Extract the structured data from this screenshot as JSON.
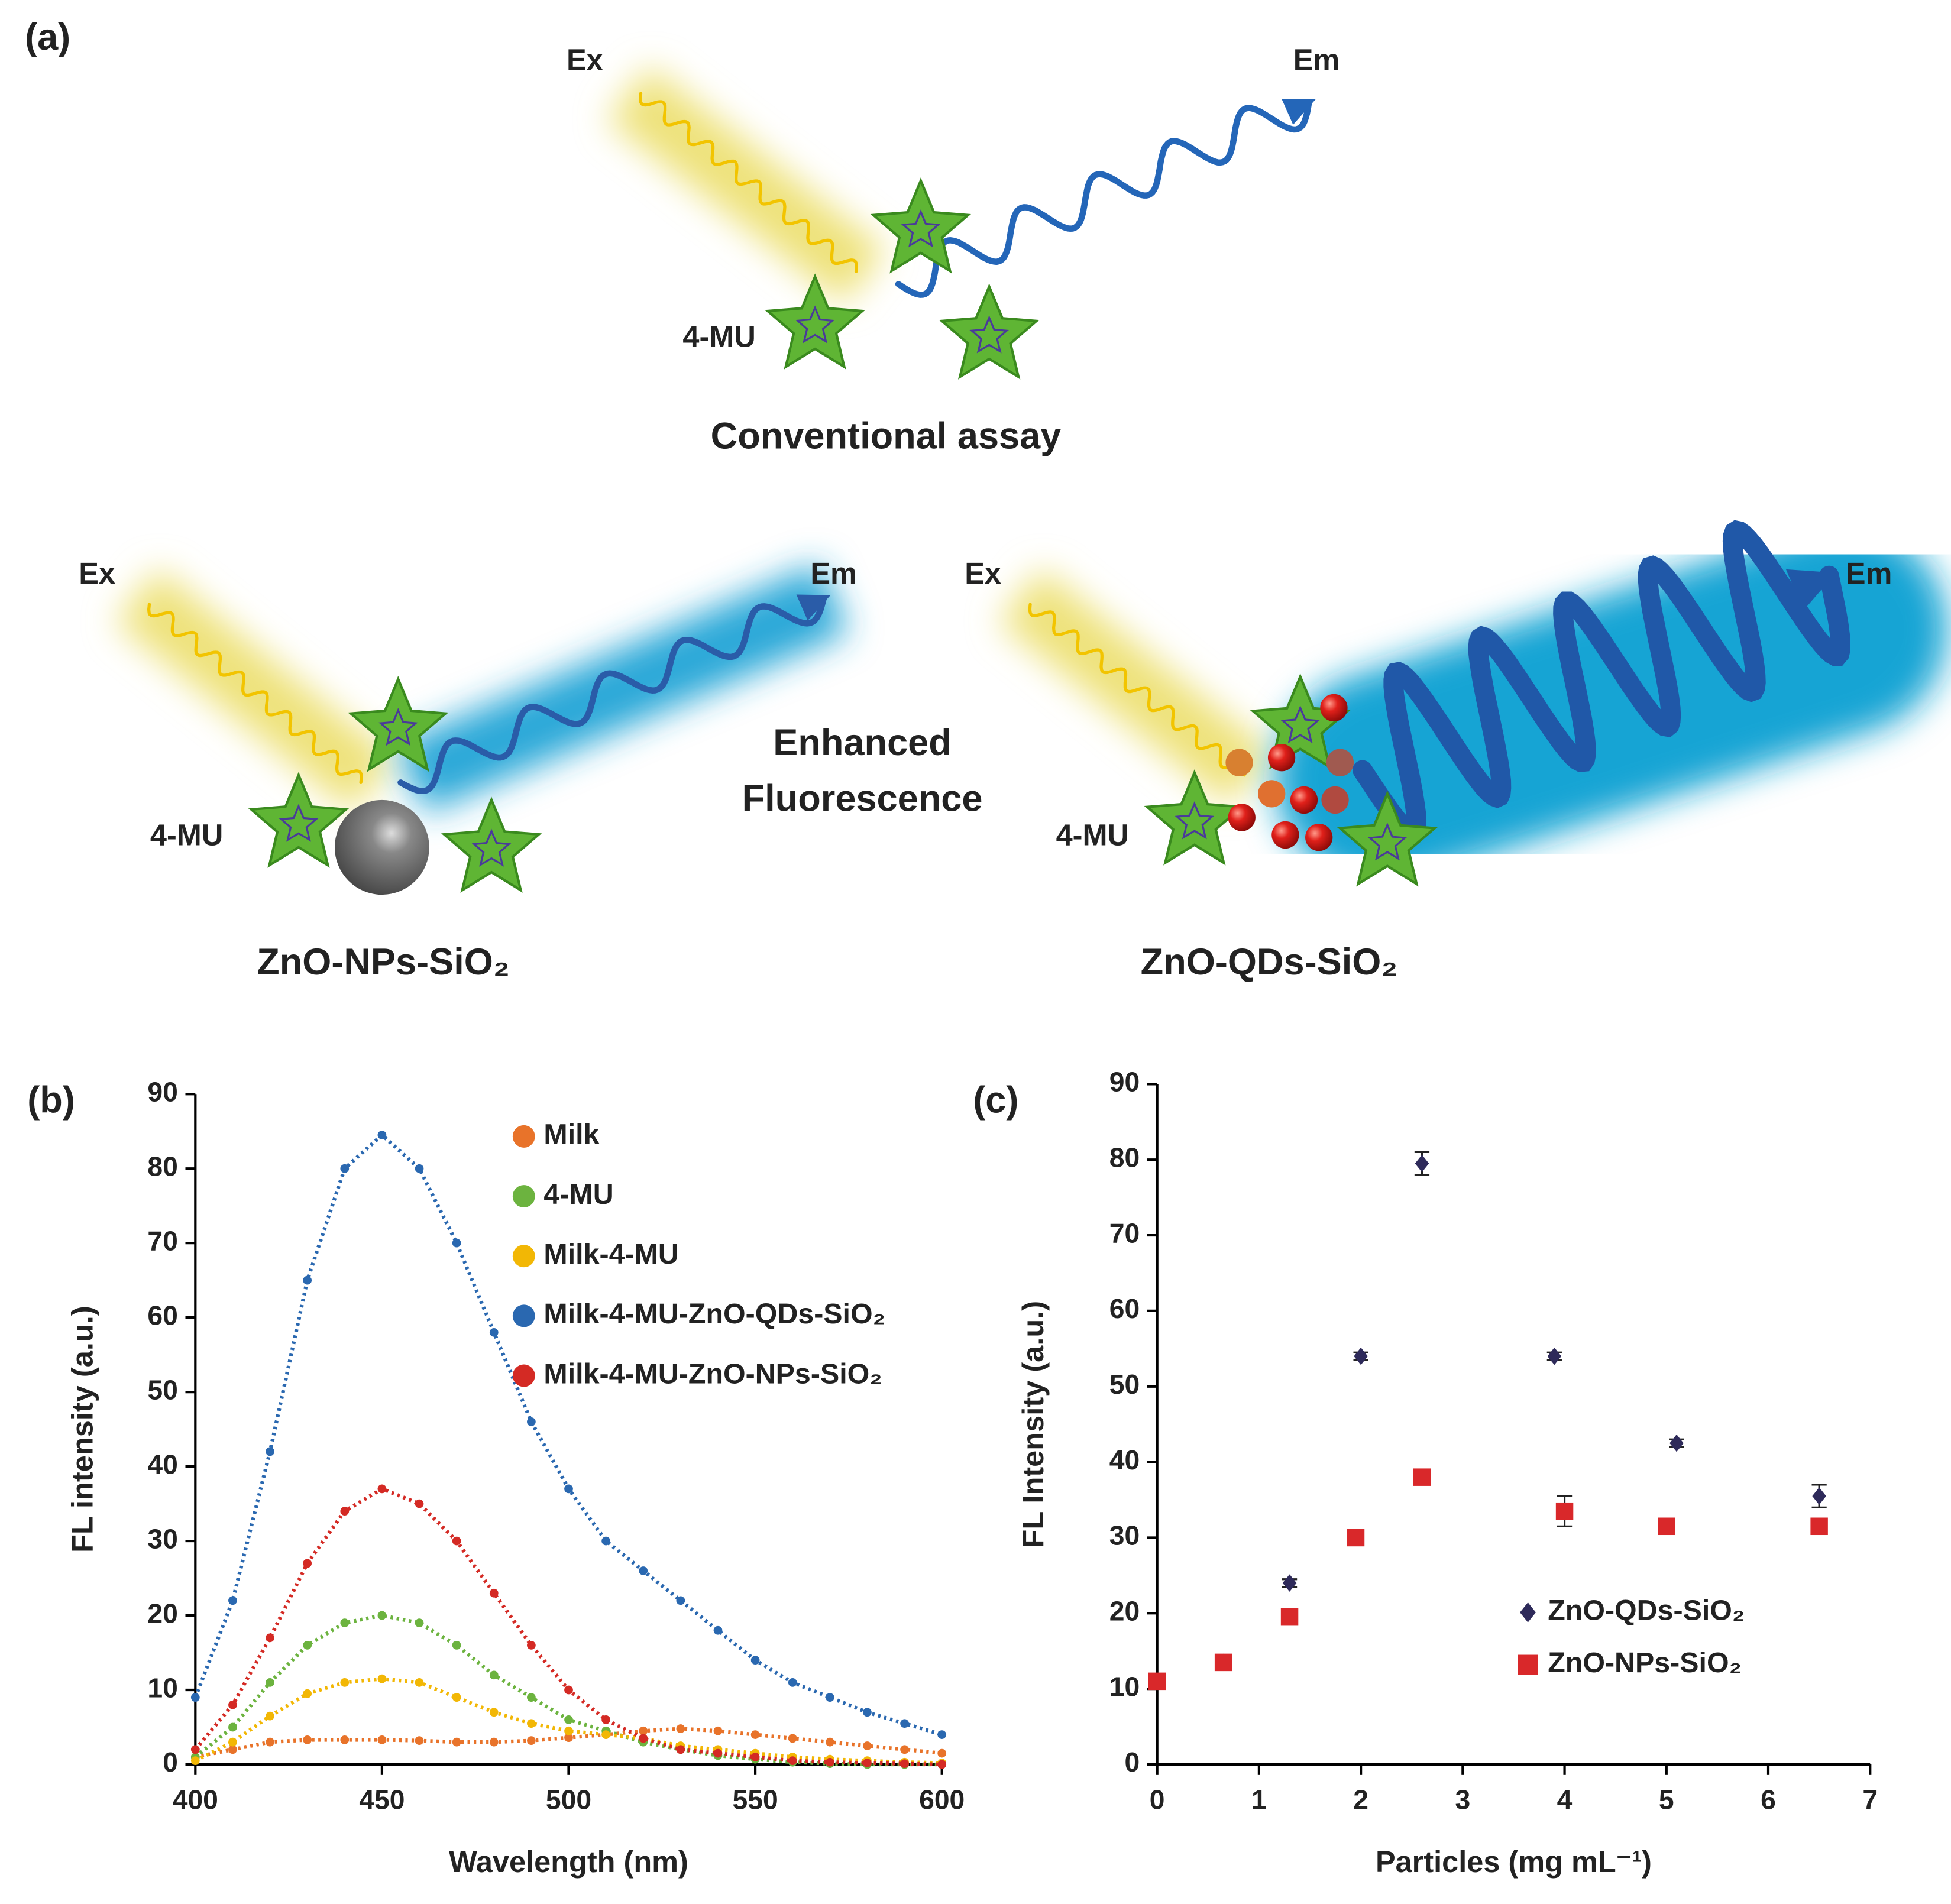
{
  "panel_labels": [
    "(a)",
    "(b)",
    "(c)"
  ],
  "diagram": {
    "conventional": {
      "ex": "Ex",
      "em": "Em",
      "molecule": "4-MU",
      "caption": "Conventional assay"
    },
    "nps": {
      "ex": "Ex",
      "em": "Em",
      "molecule": "4-MU",
      "caption": "ZnO-NPs-SiO₂"
    },
    "qds": {
      "ex": "Ex",
      "em": "Em",
      "molecule": "4-MU",
      "caption": "ZnO-QDs-SiO₂"
    },
    "center_label": [
      "Enhanced",
      "Fluorescence"
    ]
  },
  "chart_data": [
    {
      "type": "line",
      "x_label": "Wavelength (nm)",
      "y_label": "FL intensity (a.u.)",
      "x": [
        400,
        410,
        420,
        430,
        440,
        450,
        460,
        470,
        480,
        490,
        500,
        510,
        520,
        530,
        540,
        550,
        560,
        570,
        580,
        590,
        600
      ],
      "series": [
        {
          "name": "Milk",
          "color": "#e8732a",
          "values": [
            1,
            2,
            3,
            3.3,
            3.3,
            3.3,
            3.2,
            3,
            3,
            3.2,
            3.6,
            4,
            4.5,
            4.8,
            4.5,
            4,
            3.5,
            3,
            2.5,
            2,
            1.5
          ]
        },
        {
          "name": "4-MU",
          "color": "#6cb33f",
          "values": [
            1,
            5,
            11,
            16,
            19,
            20,
            19,
            16,
            12,
            9,
            6,
            4.5,
            3,
            2,
            1.2,
            0.7,
            0.3,
            0.1,
            0,
            0,
            0
          ]
        },
        {
          "name": "Milk-4-MU",
          "color": "#f2b705",
          "values": [
            0.5,
            3,
            6.5,
            9.5,
            11,
            11.5,
            11,
            9,
            7,
            5.5,
            4.5,
            4,
            3.5,
            2.5,
            2,
            1.5,
            1,
            0.7,
            0.5,
            0.3,
            0.2
          ]
        },
        {
          "name": "Milk-4-MU-ZnO-QDs-SiO₂",
          "color": "#2a68b0",
          "values": [
            9,
            22,
            42,
            65,
            80,
            84.5,
            80,
            70,
            58,
            46,
            37,
            30,
            26,
            22,
            18,
            14,
            11,
            9,
            7,
            5.5,
            4
          ]
        },
        {
          "name": "Milk-4-MU-ZnO-NPs-SiO₂",
          "color": "#d42a24",
          "values": [
            2,
            8,
            17,
            27,
            34,
            37,
            35,
            30,
            23,
            16,
            10,
            6,
            3.5,
            2,
            1.5,
            1,
            0.5,
            0.3,
            0.2,
            0.1,
            0
          ]
        }
      ],
      "xlim": [
        400,
        600
      ],
      "xticks": [
        400,
        450,
        500,
        550,
        600
      ],
      "ylim": [
        0,
        90
      ],
      "yticks": [
        0,
        10,
        20,
        30,
        40,
        50,
        60,
        70,
        80,
        90
      ],
      "legend": "upper right"
    },
    {
      "type": "scatter",
      "x_label": "Particles (mg mL⁻¹)",
      "y_label": "FL Intensity (a.u.)",
      "series": [
        {
          "name": "ZnO-QDs-SiO₂",
          "color": "#2e2a5a",
          "marker": "diamond",
          "x": [
            0,
            0.65,
            1.3,
            2,
            2.6,
            3.9,
            5.1,
            6.5
          ],
          "values": [
            11,
            13.5,
            24,
            54,
            79.5,
            54,
            42.5,
            35.5
          ],
          "errors": [
            0.5,
            1,
            0.5,
            0.5,
            1.5,
            0.5,
            0.5,
            1.5
          ]
        },
        {
          "name": "ZnO-NPs-SiO₂",
          "color": "#d9282a",
          "marker": "square",
          "x": [
            0,
            0.65,
            1.3,
            1.95,
            2.6,
            4,
            5,
            6.5
          ],
          "values": [
            11,
            13.5,
            19.5,
            30,
            38,
            33.5,
            31.5,
            31.5
          ],
          "errors": [
            0.5,
            1,
            0.5,
            0.5,
            0.5,
            2,
            0.5,
            1
          ]
        }
      ],
      "xlim": [
        0,
        7
      ],
      "xticks": [
        0,
        1,
        2,
        3,
        4,
        5,
        6,
        7
      ],
      "ylim": [
        0,
        90
      ],
      "yticks": [
        0,
        10,
        20,
        30,
        40,
        50,
        60,
        70,
        80,
        90
      ],
      "legend": "lower right"
    }
  ]
}
